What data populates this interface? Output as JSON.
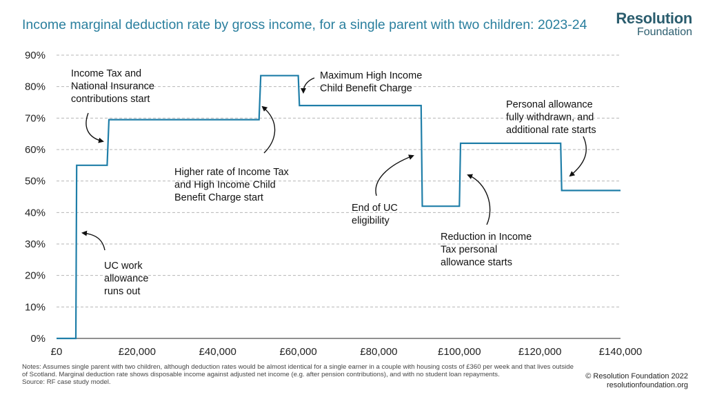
{
  "header": {
    "title": "Income marginal deduction rate by gross income, for a single parent with two children: 2023-24",
    "logo_line1": "Resolution",
    "logo_line2": "Foundation"
  },
  "chart_data": {
    "type": "line",
    "title": "Income marginal deduction rate by gross income, for a single parent with two children: 2023-24",
    "xlabel": "",
    "ylabel": "",
    "xlim": [
      0,
      140000
    ],
    "ylim": [
      0,
      90
    ],
    "x_ticks": [
      0,
      20000,
      40000,
      60000,
      80000,
      100000,
      120000,
      140000
    ],
    "x_tick_labels": [
      "£0",
      "£20,000",
      "£40,000",
      "£60,000",
      "£80,000",
      "£100,000",
      "£120,000",
      "£140,000"
    ],
    "y_ticks": [
      0,
      10,
      20,
      30,
      40,
      50,
      60,
      70,
      80,
      90
    ],
    "y_tick_labels": [
      "0%",
      "10%",
      "20%",
      "30%",
      "40%",
      "50%",
      "60%",
      "70%",
      "80%",
      "90%"
    ],
    "grid": "horizontal dashed",
    "color": "#1f7ea8",
    "series": [
      {
        "x": [
          0,
          4800,
          5000,
          12570,
          13000,
          50270,
          50700,
          60000,
          60300,
          90500,
          90800,
          100000,
          100300,
          125140,
          125400,
          140000
        ],
        "y": [
          0,
          0,
          55,
          55,
          69.5,
          69.5,
          83.5,
          83.5,
          74,
          74,
          42,
          42,
          62,
          62,
          47,
          47
        ]
      }
    ],
    "annotations": [
      {
        "id": "it-ni",
        "text": [
          "Income Tax and",
          "National Insurance",
          "contributions start"
        ]
      },
      {
        "id": "max-hicbc",
        "text": [
          "Maximum High Income",
          "Child Benefit Charge"
        ]
      },
      {
        "id": "pa-withdrawn",
        "text": [
          "Personal allowance",
          "fully withdrawn, and",
          "additional rate starts"
        ]
      },
      {
        "id": "higher-rate",
        "text": [
          "Higher rate of Income Tax",
          "and High Income Child",
          "Benefit Charge start"
        ]
      },
      {
        "id": "end-uc",
        "text": [
          "End of UC",
          "eligibility"
        ]
      },
      {
        "id": "pa-reduction",
        "text": [
          "Reduction in Income",
          "Tax personal",
          "allowance starts"
        ]
      },
      {
        "id": "uc-work",
        "text": [
          "UC work",
          "allowance",
          "runs out"
        ]
      }
    ]
  },
  "footer": {
    "notes": "Notes: Assumes single parent with two children, although deduction rates would be almost identical for a single earner in a couple with housing costs of £360 per week and that lives outside of Scotland. Marginal deduction rate shows disposable income against adjusted net income (e.g. after pension contributions), and with no student loan repayments.",
    "source": "Source: RF case study model.",
    "copyright": "© Resolution Foundation 2022",
    "website": "resolutionfoundation.org"
  }
}
